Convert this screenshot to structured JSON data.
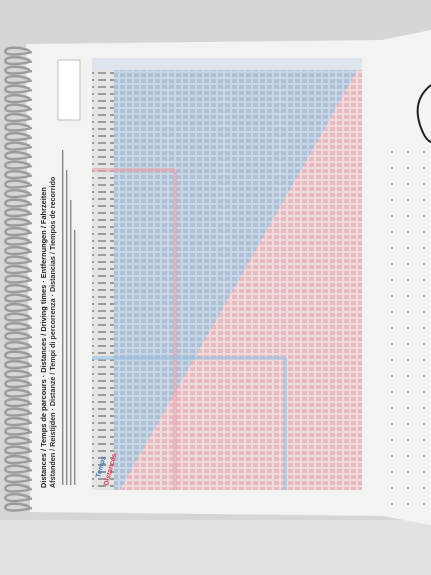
{
  "page": {
    "title": "Distances / Temps de parcours · Distances / Driving times · Entfernungen / Fahrzeiten",
    "subtitle": "Afstanden / Reistijden · Distanze / Tempi di percorrenza · Distancias / Tiempos de recorrido",
    "legend": {
      "time": "Temps",
      "distance": "Distances"
    }
  }
}
